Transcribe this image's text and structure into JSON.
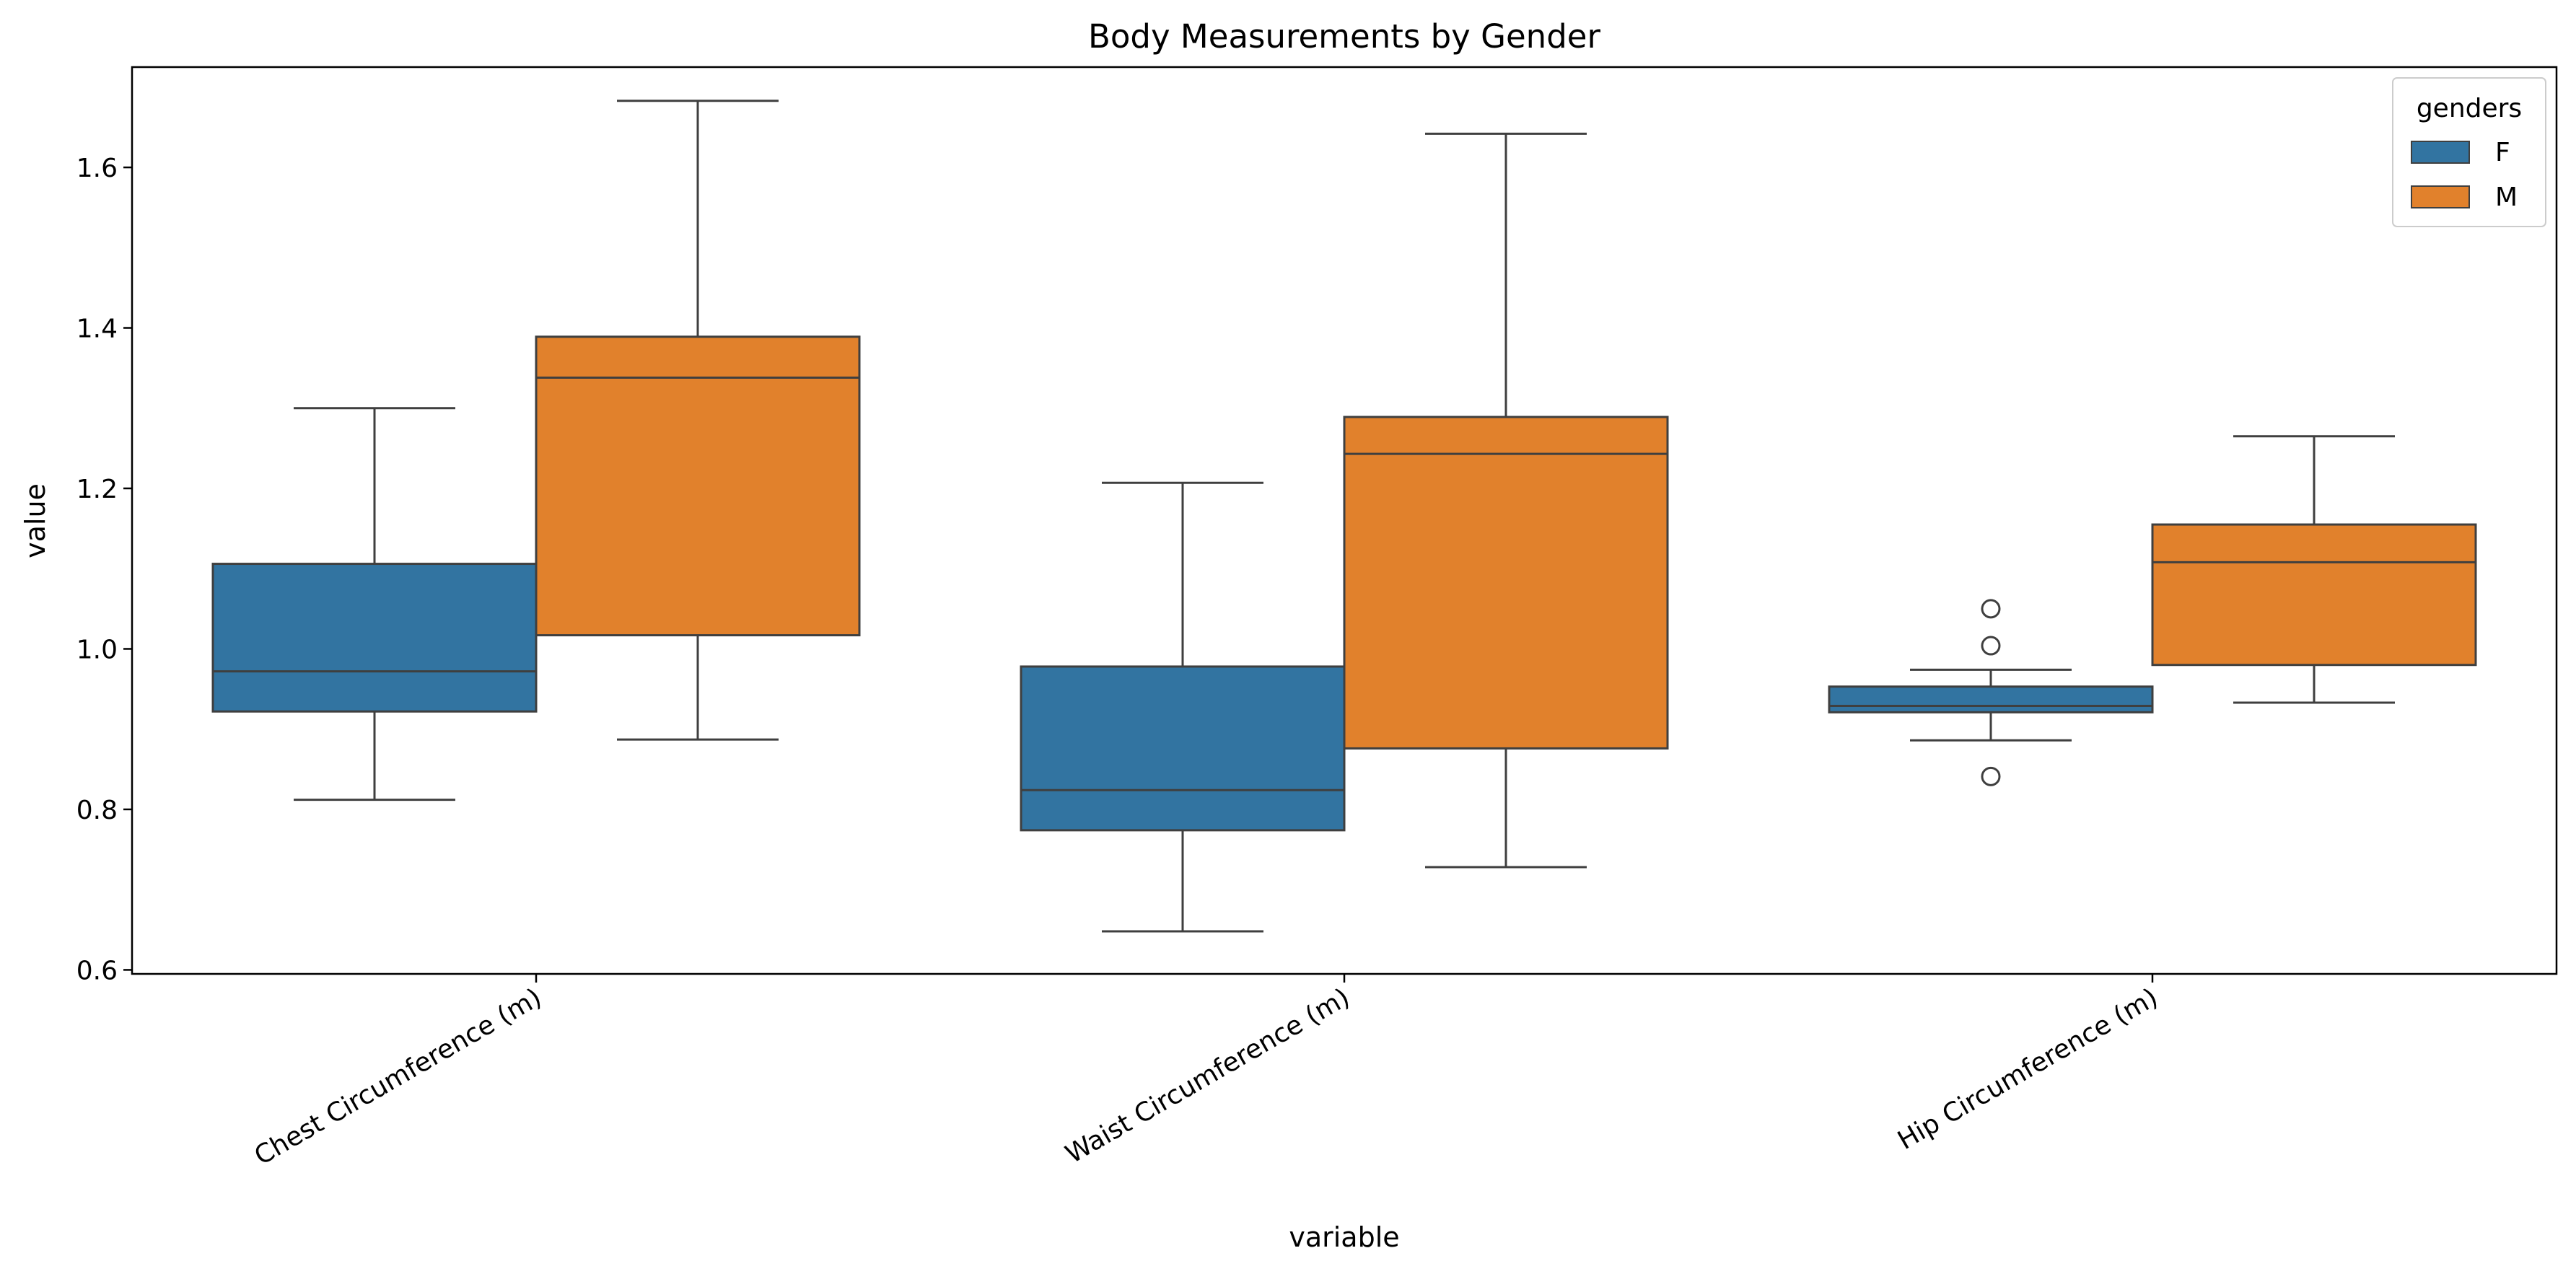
{
  "chart_data": {
    "type": "box",
    "title": "Body Measurements by Gender",
    "xlabel": "variable",
    "ylabel": "value",
    "ylim": [
      0.595,
      1.725
    ],
    "yticks": [
      0.6,
      0.8,
      1.0,
      1.2,
      1.4,
      1.6
    ],
    "ytick_labels": [
      "0.6",
      "0.8",
      "1.0",
      "1.2",
      "1.4",
      "1.6"
    ],
    "categories": [
      "Chest Circumference (m)",
      "Waist Circumference (m)",
      "Hip Circumference (m)"
    ],
    "grid": false,
    "legend": {
      "title": "genders",
      "placement": "top-right",
      "entries": [
        "F",
        "M"
      ]
    },
    "series": [
      {
        "name": "F",
        "color": "#3274a1",
        "boxes": [
          {
            "whisker_low": 0.812,
            "q1": 0.922,
            "median": 0.972,
            "q3": 1.106,
            "whisker_high": 1.3,
            "outliers": []
          },
          {
            "whisker_low": 0.648,
            "q1": 0.774,
            "median": 0.824,
            "q3": 0.978,
            "whisker_high": 1.207,
            "outliers": []
          },
          {
            "whisker_low": 0.886,
            "q1": 0.921,
            "median": 0.929,
            "q3": 0.953,
            "whisker_high": 0.974,
            "outliers": [
              1.05,
              1.004,
              0.841
            ]
          }
        ]
      },
      {
        "name": "M",
        "color": "#e1812c",
        "boxes": [
          {
            "whisker_low": 0.887,
            "q1": 1.017,
            "median": 1.338,
            "q3": 1.389,
            "whisker_high": 1.683,
            "outliers": []
          },
          {
            "whisker_low": 0.728,
            "q1": 0.876,
            "median": 1.243,
            "q3": 1.289,
            "whisker_high": 1.642,
            "outliers": []
          },
          {
            "whisker_low": 0.933,
            "q1": 0.98,
            "median": 1.108,
            "q3": 1.155,
            "whisker_high": 1.265,
            "outliers": []
          }
        ]
      }
    ],
    "line_color": "#3f3f3f"
  }
}
